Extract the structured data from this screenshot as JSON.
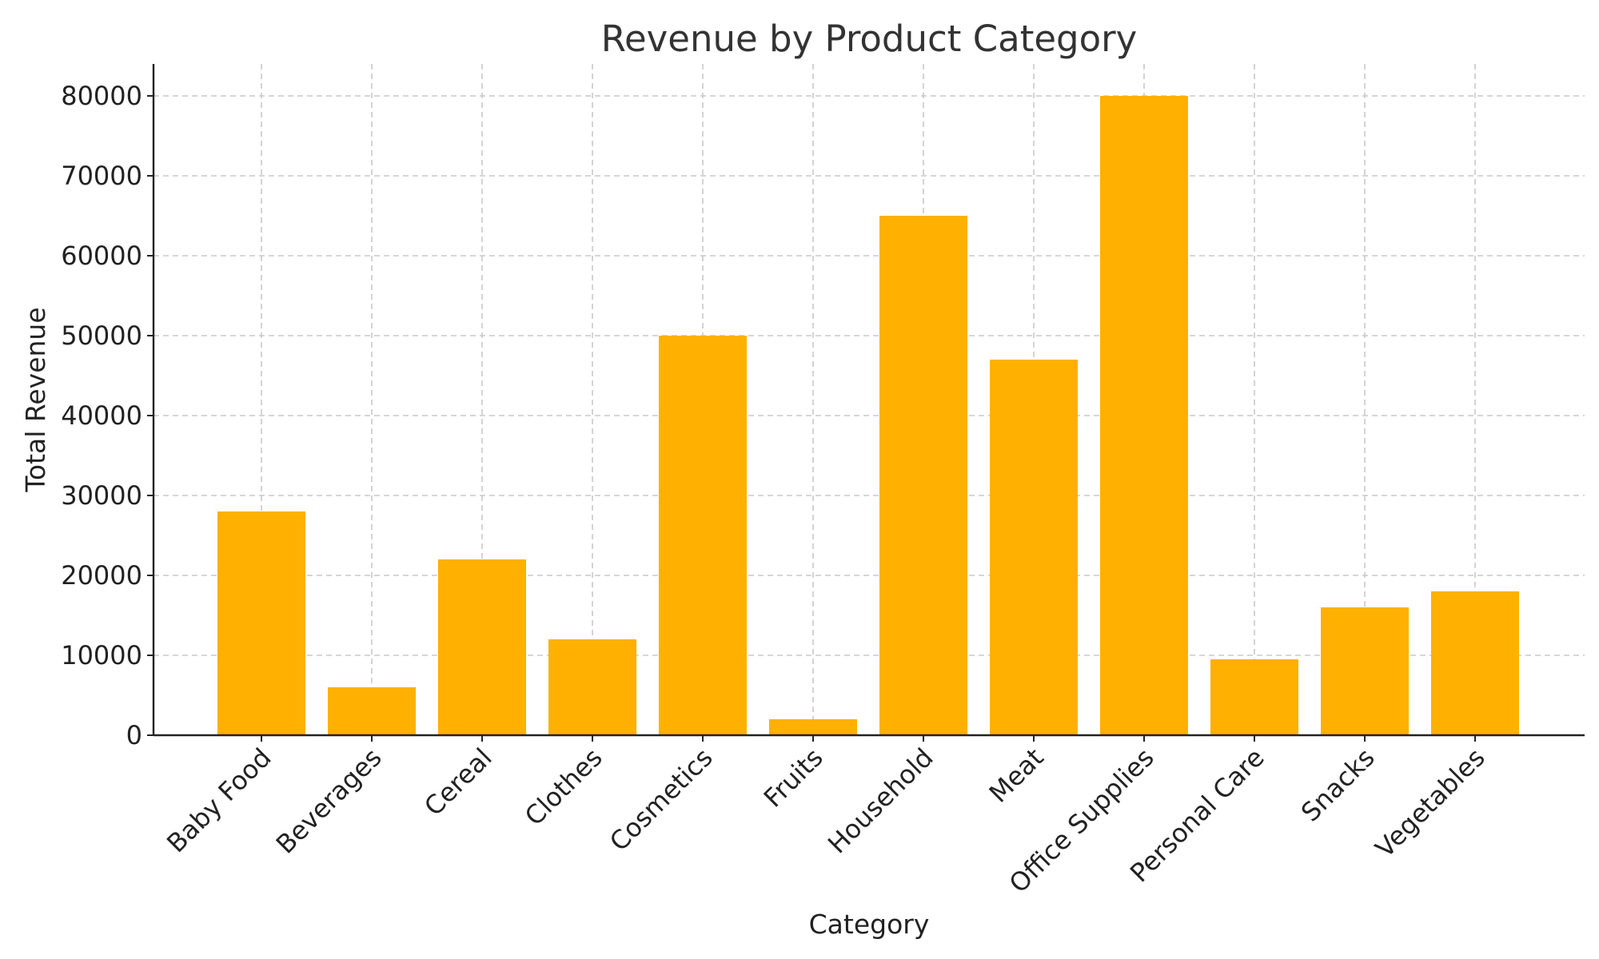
{
  "chart_data": {
    "type": "bar",
    "title": "Revenue by Product Category",
    "xlabel": "Category",
    "ylabel": "Total Revenue",
    "categories": [
      "Baby Food",
      "Beverages",
      "Cereal",
      "Clothes",
      "Cosmetics",
      "Fruits",
      "Household",
      "Meat",
      "Office Supplies",
      "Personal Care",
      "Snacks",
      "Vegetables"
    ],
    "values": [
      28000,
      6000,
      22000,
      12000,
      50000,
      2000,
      65000,
      47000,
      80000,
      9500,
      16000,
      18000
    ],
    "ylim": [
      0,
      84000
    ],
    "yticks": [
      0,
      10000,
      20000,
      30000,
      40000,
      50000,
      60000,
      70000,
      80000
    ],
    "ytick_labels": [
      "0",
      "10000",
      "20000",
      "30000",
      "40000",
      "50000",
      "60000",
      "70000",
      "80000"
    ],
    "grid": true,
    "legend": "none",
    "colors": {
      "bar": "#ffb000",
      "grid": "#c8c8c8",
      "axis": "#222222",
      "title": "#333333"
    }
  }
}
